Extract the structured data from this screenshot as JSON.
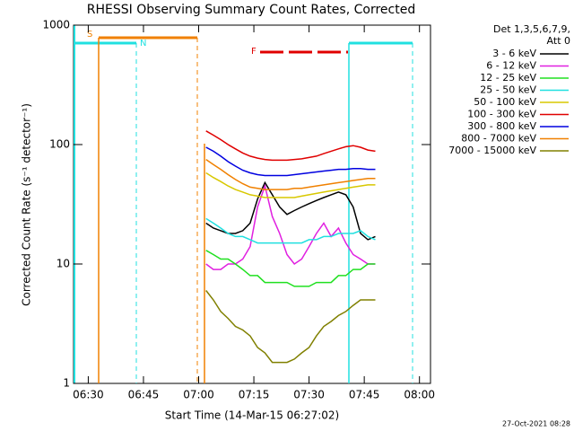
{
  "chart_data": {
    "type": "line",
    "title": "RHESSI Observing Summary Count Rates, Corrected",
    "xlabel": "Start Time (14-Mar-15 06:27:02)",
    "ylabel": "Corrected Count Rate (s⁻¹ detector⁻¹)",
    "log_y": true,
    "ylim": [
      1,
      1000
    ],
    "yticks": [
      1,
      10,
      100,
      1000
    ],
    "xlim": [
      "06:26",
      "08:03"
    ],
    "xticks": [
      "06:30",
      "06:45",
      "07:00",
      "07:15",
      "07:30",
      "07:45",
      "08:00"
    ],
    "legend_title": [
      "Det 1,3,5,6,7,9,",
      "Att 0"
    ],
    "annotations": [
      "S",
      "N",
      "F"
    ],
    "footer": "27-Oct-2021 08:28",
    "x": [
      "07:02",
      "07:04",
      "07:06",
      "07:08",
      "07:10",
      "07:12",
      "07:14",
      "07:16",
      "07:18",
      "07:20",
      "07:22",
      "07:24",
      "07:26",
      "07:28",
      "07:30",
      "07:32",
      "07:34",
      "07:36",
      "07:38",
      "07:40",
      "07:42",
      "07:44",
      "07:46",
      "07:48"
    ],
    "series": [
      {
        "name": "3 - 6 keV",
        "color": "#000000",
        "values": [
          22,
          20,
          19,
          18,
          18,
          19,
          22,
          35,
          48,
          38,
          30,
          26,
          28,
          30,
          32,
          34,
          36,
          38,
          40,
          38,
          30,
          18,
          16,
          17
        ]
      },
      {
        "name": "6 - 12 keV",
        "color": "#e020e0",
        "values": [
          10,
          9,
          9,
          10,
          10,
          11,
          14,
          30,
          45,
          25,
          18,
          12,
          10,
          11,
          14,
          18,
          22,
          17,
          20,
          15,
          12,
          11,
          10,
          10
        ]
      },
      {
        "name": "12 - 25 keV",
        "color": "#20e020",
        "values": [
          13,
          12,
          11,
          11,
          10,
          9,
          8,
          8,
          7,
          7,
          7,
          7,
          6.5,
          6.5,
          6.5,
          7,
          7,
          7,
          8,
          8,
          9,
          9,
          10,
          10
        ]
      },
      {
        "name": "25 - 50 keV",
        "color": "#20e0e0",
        "values": [
          24,
          22,
          20,
          18,
          17,
          17,
          16,
          15,
          15,
          15,
          15,
          15,
          15,
          15,
          16,
          16,
          17,
          17,
          18,
          18,
          18,
          19,
          17,
          16
        ]
      },
      {
        "name": "50 - 100 keV",
        "color": "#d8c800",
        "values": [
          58,
          53,
          49,
          45,
          42,
          40,
          38,
          37,
          36,
          36,
          36,
          36,
          36,
          37,
          38,
          39,
          40,
          41,
          42,
          43,
          44,
          45,
          46,
          46
        ]
      },
      {
        "name": "100 - 300 keV",
        "color": "#e00000",
        "values": [
          130,
          120,
          110,
          100,
          92,
          85,
          80,
          77,
          75,
          74,
          74,
          74,
          75,
          76,
          78,
          80,
          84,
          88,
          92,
          96,
          98,
          95,
          90,
          88
        ]
      },
      {
        "name": "300 - 800 keV",
        "color": "#0000e0",
        "values": [
          95,
          88,
          80,
          72,
          66,
          61,
          58,
          56,
          55,
          55,
          55,
          55,
          56,
          57,
          58,
          59,
          60,
          61,
          62,
          62,
          63,
          63,
          62,
          62
        ]
      },
      {
        "name": "800 - 7000 keV",
        "color": "#f08000",
        "values": [
          75,
          68,
          62,
          56,
          51,
          47,
          44,
          43,
          42,
          42,
          42,
          42,
          43,
          43,
          44,
          45,
          46,
          47,
          48,
          49,
          50,
          51,
          52,
          52
        ]
      },
      {
        "name": "7000 - 15000 keV",
        "color": "#808000",
        "values": [
          6,
          5,
          4,
          3.5,
          3,
          2.8,
          2.5,
          2,
          1.8,
          1.5,
          1.5,
          1.5,
          1.6,
          1.8,
          2,
          2.5,
          3,
          3.3,
          3.7,
          4,
          4.5,
          5,
          5,
          5
        ]
      }
    ]
  }
}
